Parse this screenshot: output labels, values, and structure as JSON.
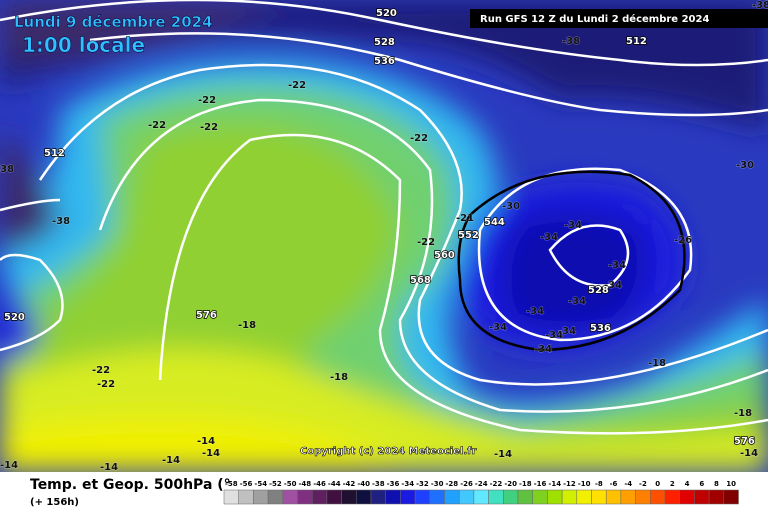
{
  "header": {
    "date": "Lundi 9 décembre 2024",
    "time": "1:00 locale",
    "run": "Run GFS 12 Z du Lundi 2 décembre 2024"
  },
  "map": {
    "labels": [
      520,
      528,
      536,
      512,
      -38,
      -22,
      -22,
      -22,
      -22,
      -22,
      -38,
      512,
      -38,
      -30,
      -30,
      -21,
      544,
      552,
      560,
      568,
      -22,
      -34,
      -34,
      -34,
      -26,
      528,
      -34,
      -34,
      -34,
      -34,
      -34,
      -34,
      536,
      -34,
      576,
      -18,
      -18,
      -22,
      -22,
      -14,
      -14,
      -14,
      -14,
      -14,
      -14,
      -14,
      576,
      -18,
      -18,
      520,
      -38
    ],
    "copyright": "Copyright (c) 2024 Meteociel.fr"
  },
  "footer": {
    "title": "Temp. et Geop. 500hPa (°",
    "range": "(+ 156h)"
  },
  "legend": {
    "ticks": [
      -58,
      -56,
      -54,
      -52,
      -50,
      -48,
      -46,
      -44,
      -42,
      -40,
      -38,
      -36,
      -34,
      -32,
      -30,
      -28,
      -26,
      -24,
      -22,
      -20,
      -18,
      -16,
      -14,
      -12,
      -10,
      -8,
      -6,
      -4,
      -2,
      0,
      2,
      4,
      6,
      8,
      10
    ],
    "colors": [
      "#e0e0e0",
      "#c0c0c0",
      "#a0a0a0",
      "#808080",
      "#a050a0",
      "#803080",
      "#602060",
      "#401040",
      "#201030",
      "#101040",
      "#202080",
      "#1010b0",
      "#1a1ae0",
      "#2040ff",
      "#2070ff",
      "#20a0ff",
      "#40c8ff",
      "#60e8ff",
      "#40e0c0",
      "#40d080",
      "#60c040",
      "#80d020",
      "#a0e000",
      "#d0f000",
      "#f0f000",
      "#ffe000",
      "#ffc000",
      "#ffa000",
      "#ff8000",
      "#ff5000",
      "#ff2000",
      "#e00000",
      "#c00000",
      "#a00000",
      "#800000"
    ]
  }
}
